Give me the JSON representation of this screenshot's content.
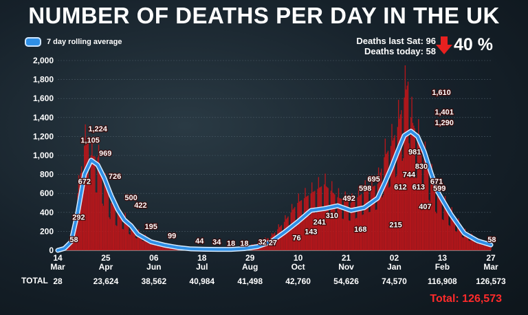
{
  "header": {
    "title": "NUMBER OF DEATHS PER DAY IN THE UK",
    "legend_label": "7 day rolling average",
    "stat_line1": "Deaths last Sat: 96",
    "stat_line2": "Deaths today: 58",
    "change_pct": "40 %",
    "change_direction": "down"
  },
  "footer": {
    "totals_label": "TOTAL",
    "grand_total": "Total: 126,573"
  },
  "colors": {
    "bars": "#c0161a",
    "rolling_line": "#2f8fe6",
    "rolling_outline": "#d6ecff",
    "arrow": "#e8201f",
    "grand_total": "#ff2b2b"
  },
  "chart_data": {
    "type": "bar",
    "title": "NUMBER OF DEATHS PER DAY IN THE UK",
    "ylim": [
      0,
      2000
    ],
    "yticks": [
      0,
      200,
      400,
      600,
      800,
      1000,
      1200,
      1400,
      1600,
      1800,
      2000
    ],
    "ytick_labels": [
      "0",
      "200",
      "400",
      "600",
      "800",
      "1,000",
      "1,200",
      "1,400",
      "1,600",
      "1,800",
      "2,000"
    ],
    "grid": true,
    "x_axis_ticks": [
      {
        "day": "14",
        "month": "Mar",
        "total": "28"
      },
      {
        "day": "25",
        "month": "Apr",
        "total": "23,624"
      },
      {
        "day": "06",
        "month": "Jun",
        "total": "38,562"
      },
      {
        "day": "18",
        "month": "Jul",
        "total": "40,984"
      },
      {
        "day": "29",
        "month": "Aug",
        "total": "41,498"
      },
      {
        "day": "10",
        "month": "Oct",
        "total": "42,760"
      },
      {
        "day": "21",
        "month": "Nov",
        "total": "54,626"
      },
      {
        "day": "02",
        "month": "Jan",
        "total": "74,570"
      },
      {
        "day": "13",
        "month": "Feb",
        "total": "116,908"
      },
      {
        "day": "27",
        "month": "Mar",
        "total": "126,573"
      }
    ],
    "series": [
      {
        "name": "7 day rolling average",
        "type": "line",
        "points": [
          [
            0,
            0
          ],
          [
            7,
            20
          ],
          [
            14,
            90
          ],
          [
            21,
            400
          ],
          [
            28,
            800
          ],
          [
            35,
            950
          ],
          [
            42,
            900
          ],
          [
            49,
            760
          ],
          [
            56,
            580
          ],
          [
            63,
            430
          ],
          [
            70,
            320
          ],
          [
            77,
            260
          ],
          [
            84,
            170
          ],
          [
            98,
            90
          ],
          [
            112,
            55
          ],
          [
            126,
            30
          ],
          [
            140,
            15
          ],
          [
            154,
            12
          ],
          [
            168,
            10
          ],
          [
            182,
            10
          ],
          [
            196,
            18
          ],
          [
            210,
            40
          ],
          [
            224,
            90
          ],
          [
            238,
            190
          ],
          [
            252,
            300
          ],
          [
            266,
            420
          ],
          [
            280,
            440
          ],
          [
            294,
            470
          ],
          [
            308,
            420
          ],
          [
            322,
            450
          ],
          [
            336,
            550
          ],
          [
            343,
            700
          ],
          [
            350,
            860
          ],
          [
            357,
            1040
          ],
          [
            364,
            1210
          ],
          [
            371,
            1255
          ],
          [
            378,
            1200
          ],
          [
            385,
            1040
          ],
          [
            392,
            820
          ],
          [
            399,
            620
          ],
          [
            413,
            380
          ],
          [
            427,
            180
          ],
          [
            441,
            100
          ],
          [
            455,
            58
          ]
        ]
      }
    ],
    "daily_bars": [
      [
        0,
        2
      ],
      [
        7,
        20
      ],
      [
        14,
        100
      ],
      [
        21,
        600
      ],
      [
        28,
        1100
      ],
      [
        33,
        1224
      ],
      [
        35,
        1000
      ],
      [
        42,
        980
      ],
      [
        49,
        720
      ],
      [
        56,
        500
      ],
      [
        63,
        400
      ],
      [
        70,
        350
      ],
      [
        77,
        250
      ],
      [
        84,
        195
      ],
      [
        98,
        100
      ],
      [
        112,
        60
      ],
      [
        126,
        34
      ],
      [
        140,
        18
      ],
      [
        154,
        15
      ],
      [
        168,
        12
      ],
      [
        182,
        20
      ],
      [
        196,
        30
      ],
      [
        210,
        76
      ],
      [
        224,
        143
      ],
      [
        238,
        300
      ],
      [
        252,
        500
      ],
      [
        266,
        600
      ],
      [
        280,
        695
      ],
      [
        294,
        560
      ],
      [
        308,
        500
      ],
      [
        322,
        620
      ],
      [
        336,
        700
      ],
      [
        343,
        981
      ],
      [
        350,
        1100
      ],
      [
        357,
        1300
      ],
      [
        364,
        1610
      ],
      [
        369,
        1820
      ],
      [
        371,
        1400
      ],
      [
        378,
        1200
      ],
      [
        385,
        1000
      ],
      [
        392,
        800
      ],
      [
        399,
        600
      ],
      [
        413,
        400
      ],
      [
        427,
        200
      ],
      [
        441,
        110
      ],
      [
        455,
        58
      ]
    ],
    "annotations": [
      {
        "x": 17,
        "y": 58,
        "label": "58"
      },
      {
        "x": 22,
        "y": 292,
        "label": "292"
      },
      {
        "x": 28,
        "y": 672,
        "label": "672"
      },
      {
        "x": 34,
        "y": 1105,
        "label": "1,105"
      },
      {
        "x": 42,
        "y": 1224,
        "label": "1,224"
      },
      {
        "x": 50,
        "y": 969,
        "label": "969"
      },
      {
        "x": 60,
        "y": 726,
        "label": "726"
      },
      {
        "x": 77,
        "y": 500,
        "label": "500"
      },
      {
        "x": 87,
        "y": 422,
        "label": "422"
      },
      {
        "x": 98,
        "y": 195,
        "label": "195"
      },
      {
        "x": 120,
        "y": 99,
        "label": "99"
      },
      {
        "x": 149,
        "y": 44,
        "label": "44"
      },
      {
        "x": 167,
        "y": 34,
        "label": "34"
      },
      {
        "x": 182,
        "y": 18,
        "label": "18"
      },
      {
        "x": 196,
        "y": 18,
        "label": "18"
      },
      {
        "x": 215,
        "y": 32,
        "label": "32"
      },
      {
        "x": 226,
        "y": 27,
        "label": "27"
      },
      {
        "x": 251,
        "y": 76,
        "label": "76"
      },
      {
        "x": 266,
        "y": 143,
        "label": "143"
      },
      {
        "x": 275,
        "y": 241,
        "label": "241"
      },
      {
        "x": 288,
        "y": 310,
        "label": "310"
      },
      {
        "x": 306,
        "y": 492,
        "label": "492"
      },
      {
        "x": 318,
        "y": 168,
        "label": "168"
      },
      {
        "x": 323,
        "y": 598,
        "label": "598"
      },
      {
        "x": 332,
        "y": 695,
        "label": "695"
      },
      {
        "x": 355,
        "y": 215,
        "label": "215"
      },
      {
        "x": 360,
        "y": 612,
        "label": "612"
      },
      {
        "x": 369,
        "y": 744,
        "label": "744"
      },
      {
        "x": 375,
        "y": 981,
        "label": "981"
      },
      {
        "x": 379,
        "y": 613,
        "label": "613"
      },
      {
        "x": 382,
        "y": 830,
        "label": "830"
      },
      {
        "x": 386,
        "y": 407,
        "label": "407"
      },
      {
        "x": 398,
        "y": 671,
        "label": "671"
      },
      {
        "x": 401,
        "y": 599,
        "label": "599"
      },
      {
        "x": 403,
        "y": 1610,
        "label": "1,610"
      },
      {
        "x": 406,
        "y": 1401,
        "label": "1,401"
      },
      {
        "x": 406,
        "y": 1290,
        "label": "1,290"
      },
      {
        "x": 456,
        "y": 58,
        "label": "58"
      }
    ]
  }
}
